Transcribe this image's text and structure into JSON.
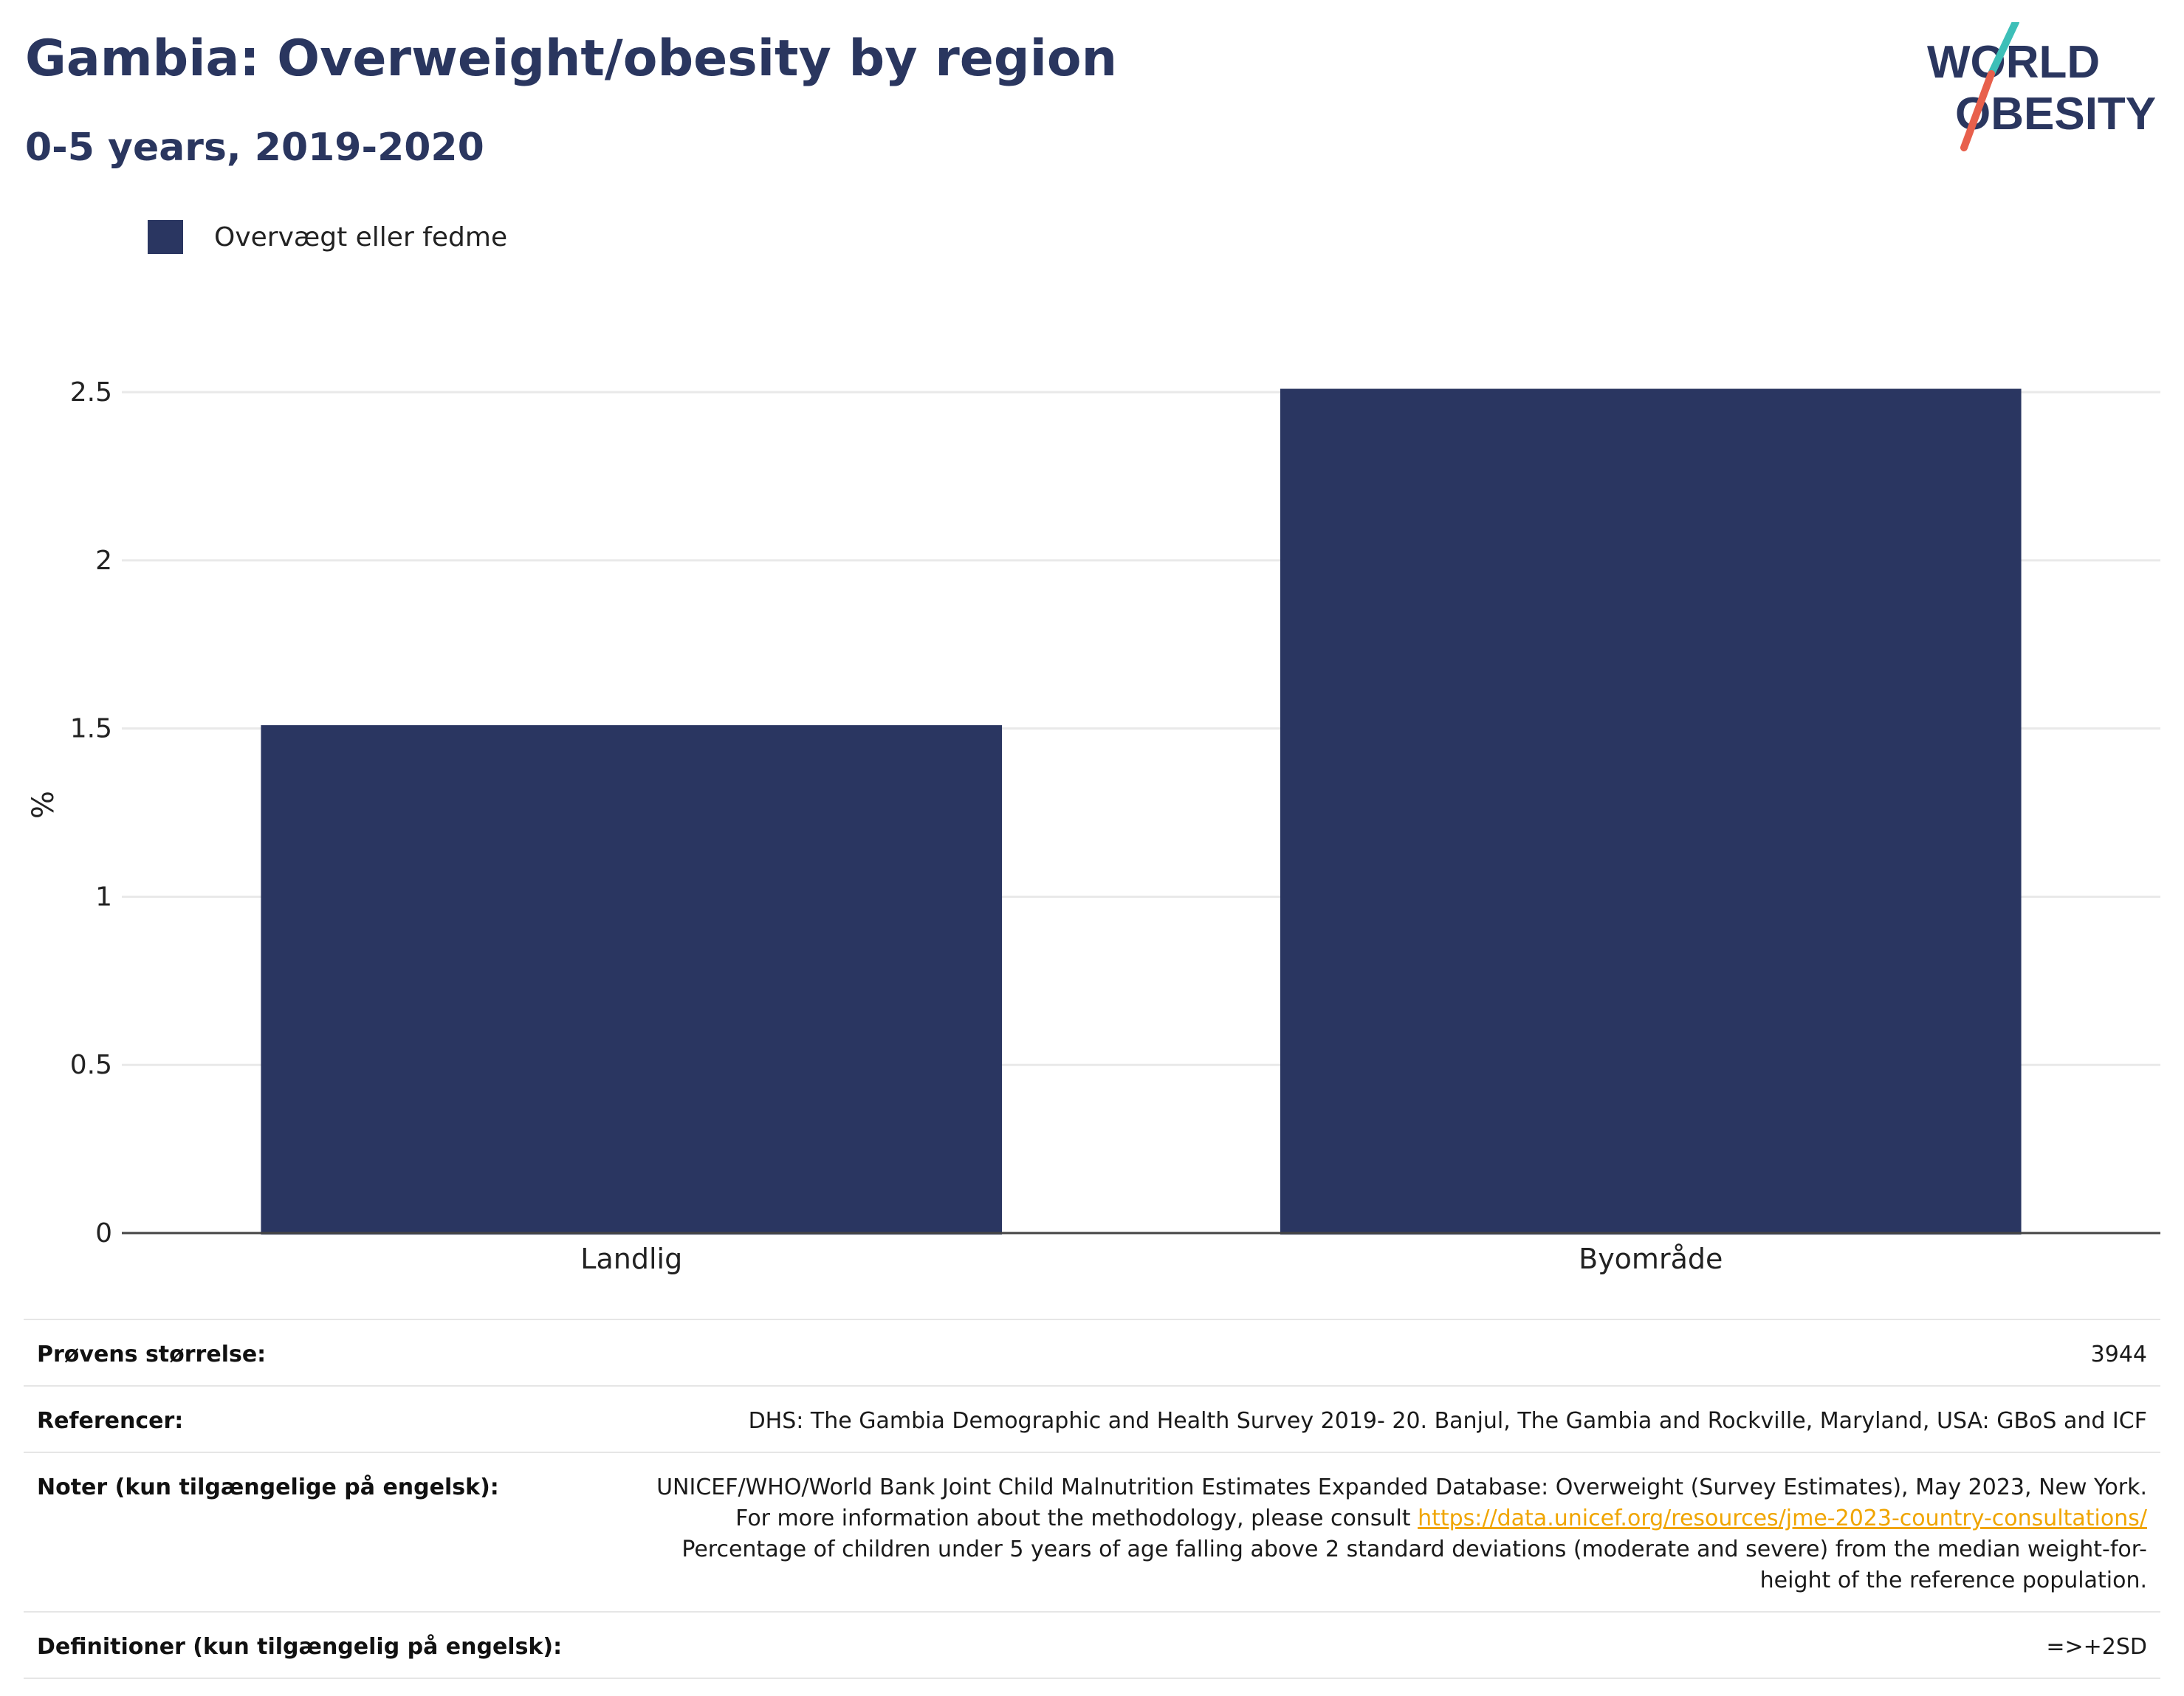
{
  "header": {
    "title": "Gambia: Overweight/obesity by region",
    "subtitle": "0-5 years, 2019-2020"
  },
  "logo": {
    "line1": "WORLD",
    "line2": "OBESITY",
    "slash_colors": [
      "#3dbfb8",
      "#e8604c"
    ]
  },
  "legend": {
    "label": "Overvægt eller fedme",
    "color": "#2a3661"
  },
  "chart_data": {
    "type": "bar",
    "categories": [
      "Landlig",
      "Byområde"
    ],
    "series": [
      {
        "name": "Overvægt eller fedme",
        "values": [
          1.51,
          2.51
        ],
        "color": "#2a3661"
      }
    ],
    "ylabel": "%",
    "ylim": [
      0,
      2.7
    ],
    "yticks": [
      0,
      0.5,
      1,
      1.5,
      2,
      2.5
    ],
    "ytick_labels": [
      "0",
      "0.5",
      "1",
      "1.5",
      "2",
      "2.5"
    ],
    "grid": true,
    "legend_position": "top-left"
  },
  "info": {
    "sample_label": "Prøvens størrelse:",
    "sample_value": "3944",
    "refs_label": "Referencer:",
    "refs_value": "DHS: The Gambia Demographic and Health Survey 2019- 20. Banjul, The Gambia and Rockville, Maryland, USA: GBoS and ICF",
    "notes_label": "Noter (kun tilgængelige på engelsk):",
    "notes_text1": "UNICEF/WHO/World Bank Joint Child Malnutrition Estimates Expanded Database: Overweight (Survey Estimates), May 2023, New York. For more information about the methodology, please consult ",
    "notes_link": "https://data.unicef.org/resources/jme-2023-country-consultations/",
    "notes_text2": "Percentage of children under 5 years of age falling above 2 standard deviations (moderate and severe) from the median weight-for-height of the reference population.",
    "defs_label": "Definitioner (kun tilgængelig på engelsk):",
    "defs_value": "=>+2SD"
  }
}
